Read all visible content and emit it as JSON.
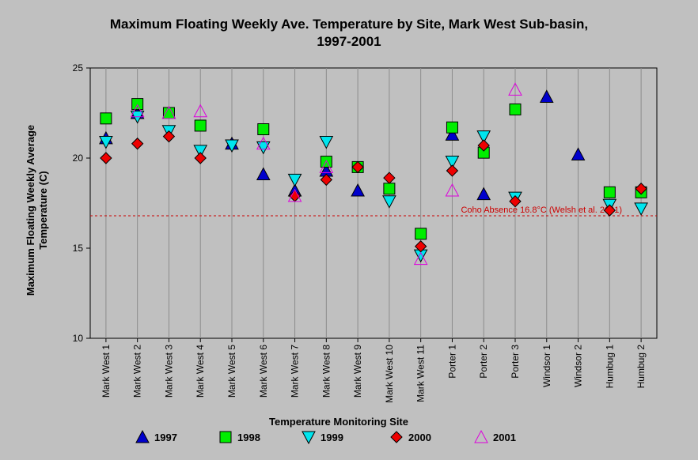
{
  "chart_data": {
    "type": "scatter",
    "title_line1": "Maximum Floating Weekly Ave. Temperature by Site, Mark West Sub-basin,",
    "title_line2": "1997-2001",
    "xlabel": "Temperature Monitoring Site",
    "ylabel_line1": "Maximum Floating Weekly Average",
    "ylabel_line2": "Temperature (C)",
    "ylim": [
      10,
      25
    ],
    "yticks": [
      "10",
      "15",
      "20",
      "25"
    ],
    "grid": "vertical",
    "legend_position": "bottom",
    "categories": [
      "Mark West 1",
      "Mark West 2",
      "Mark West 3",
      "Mark West 4",
      "Mark West 5",
      "Mark West 6",
      "Mark West 7",
      "Mark West 8",
      "Mark West 9",
      "Mark West 10",
      "Mark West 11",
      "Porter 1",
      "Porter 2",
      "Porter 3",
      "Windsor 1",
      "Windsor 2",
      "Humbug 1",
      "Humbug 2"
    ],
    "series": [
      {
        "name": "1997",
        "marker": "triangle-up",
        "color": "#0000cc",
        "values": [
          21.1,
          22.5,
          22.5,
          null,
          20.8,
          19.1,
          18.2,
          19.3,
          18.2,
          null,
          null,
          21.3,
          18.0,
          null,
          23.4,
          20.2,
          null,
          null
        ]
      },
      {
        "name": "1998",
        "marker": "square",
        "color": "#00ee00",
        "values": [
          22.2,
          23.0,
          22.5,
          21.8,
          null,
          21.6,
          null,
          19.8,
          19.5,
          18.3,
          15.8,
          21.7,
          20.3,
          22.7,
          null,
          null,
          18.1,
          18.1
        ]
      },
      {
        "name": "1999",
        "marker": "triangle-down",
        "color": "#00e5ee",
        "values": [
          20.9,
          22.3,
          21.5,
          20.4,
          20.7,
          20.6,
          18.8,
          20.9,
          null,
          17.6,
          14.6,
          19.8,
          21.2,
          17.8,
          null,
          null,
          17.4,
          17.2
        ]
      },
      {
        "name": "2000",
        "marker": "diamond",
        "color": "#ee0000",
        "values": [
          20.0,
          20.8,
          21.2,
          20.0,
          null,
          null,
          17.9,
          18.8,
          19.5,
          18.9,
          15.1,
          19.3,
          20.7,
          17.6,
          null,
          null,
          17.1,
          18.3
        ]
      },
      {
        "name": "2001",
        "marker": "triangle-up-open",
        "color": "#dd00dd",
        "values": [
          null,
          22.6,
          22.5,
          22.6,
          null,
          20.8,
          17.9,
          19.5,
          null,
          null,
          14.4,
          18.2,
          null,
          23.8,
          null,
          null,
          null,
          null
        ]
      }
    ],
    "reference_line": {
      "value": 16.8,
      "label": "Coho Absence 16.8°C (Welsh et al. 2001)",
      "color": "#cc0000"
    }
  }
}
